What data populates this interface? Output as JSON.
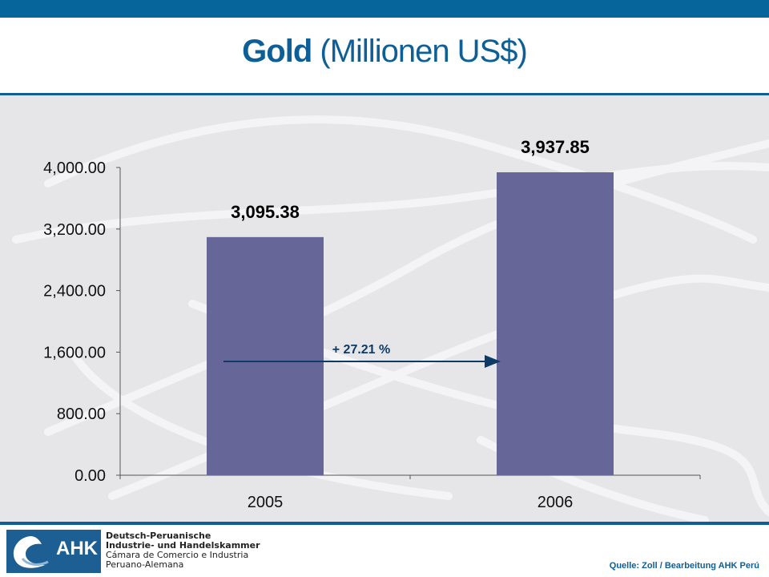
{
  "title": {
    "bold": "Gold",
    "rest": "(Millionen US$)"
  },
  "chart_data": {
    "type": "bar",
    "categories": [
      "2005",
      "2006"
    ],
    "values": [
      3095.38,
      3937.85
    ],
    "value_labels": [
      "3,095.38",
      "3,937.85"
    ],
    "ylim": [
      0,
      4000
    ],
    "yticks": [
      "0.00",
      "800.00",
      "1,600.00",
      "2,400.00",
      "3,200.00",
      "4,000.00"
    ],
    "ytick_values": [
      0,
      800,
      1600,
      2400,
      3200,
      4000
    ],
    "bar_color": "#666699",
    "annotation": {
      "text": "+ 27.21 %",
      "color": "#0d3b66"
    },
    "grid": false,
    "xlabel": "",
    "ylabel": ""
  },
  "footer": {
    "logo_text": "AHK",
    "org_lines": [
      "Deutsch-Peruanische",
      "Industrie- und Handelskammer",
      "Cámara de Comercio e Industria",
      "Peruano-Alemana"
    ],
    "source": "Quelle: Zoll / Bearbeitung  AHK Perú"
  }
}
